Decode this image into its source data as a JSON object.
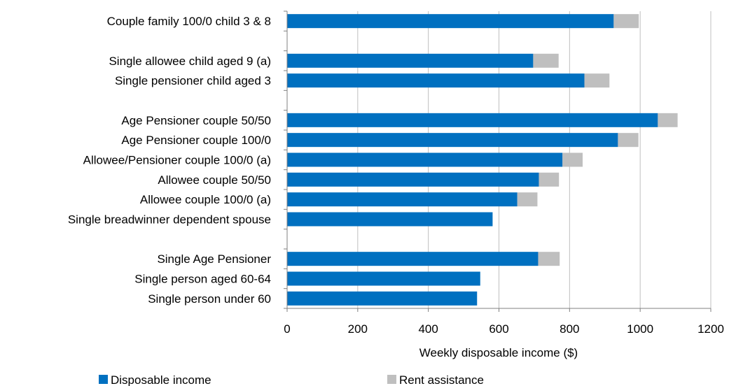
{
  "chart_data": {
    "type": "bar",
    "orientation": "horizontal",
    "stacked": true,
    "categories": [
      "Couple family 100/0 child 3 & 8",
      "",
      "Single allowee child aged 9 (a)",
      "Single pensioner child aged 3",
      "",
      "Age Pensioner couple 50/50",
      "Age Pensioner couple 100/0",
      "Allowee/Pensioner couple 100/0 (a)",
      "Allowee couple 50/50",
      "Allowee couple 100/0 (a)",
      "Single breadwinner dependent spouse",
      "",
      "Single Age Pensioner",
      "Single person aged 60-64",
      "Single person under 60"
    ],
    "series": [
      {
        "name": "Disposable income",
        "color": "#0070C0",
        "values": [
          925,
          null,
          697,
          842,
          null,
          1050,
          937,
          780,
          713,
          652,
          582,
          null,
          711,
          547,
          538
        ]
      },
      {
        "name": "Rent assistance",
        "color": "#BFBFBF",
        "values": [
          71,
          null,
          72,
          71,
          null,
          56,
          58,
          57,
          57,
          57,
          0,
          null,
          61,
          0,
          0
        ]
      }
    ],
    "xlabel": "Weekly disposable income ($)",
    "xlim": [
      0,
      1200
    ],
    "xticks": [
      0,
      200,
      400,
      600,
      800,
      1000,
      1200
    ],
    "grid": "vertical",
    "legend_position": "bottom"
  }
}
